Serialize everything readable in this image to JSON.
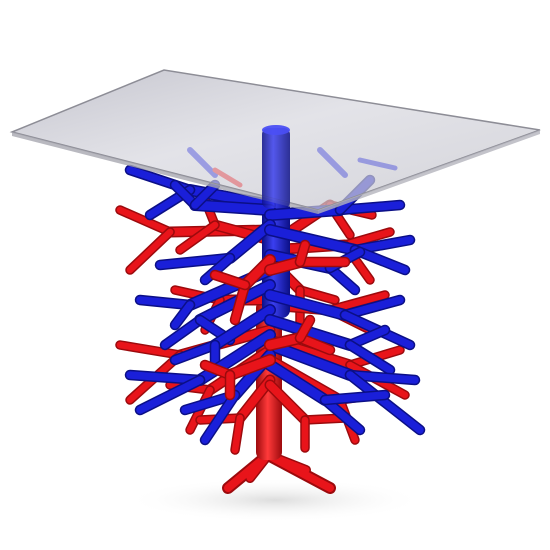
{
  "scene": {
    "subject": "glass-top-table-with-branching-base",
    "colors": {
      "background": "#ffffff",
      "branch_red": "#e8141a",
      "branch_red_dark": "#9c0a0d",
      "branch_blue": "#1a1fd9",
      "branch_blue_dark": "#0b0f86",
      "glass_fill": "#c9c9d3",
      "glass_edge": "#8d8d96",
      "shadow": "#e6e6e6"
    }
  }
}
